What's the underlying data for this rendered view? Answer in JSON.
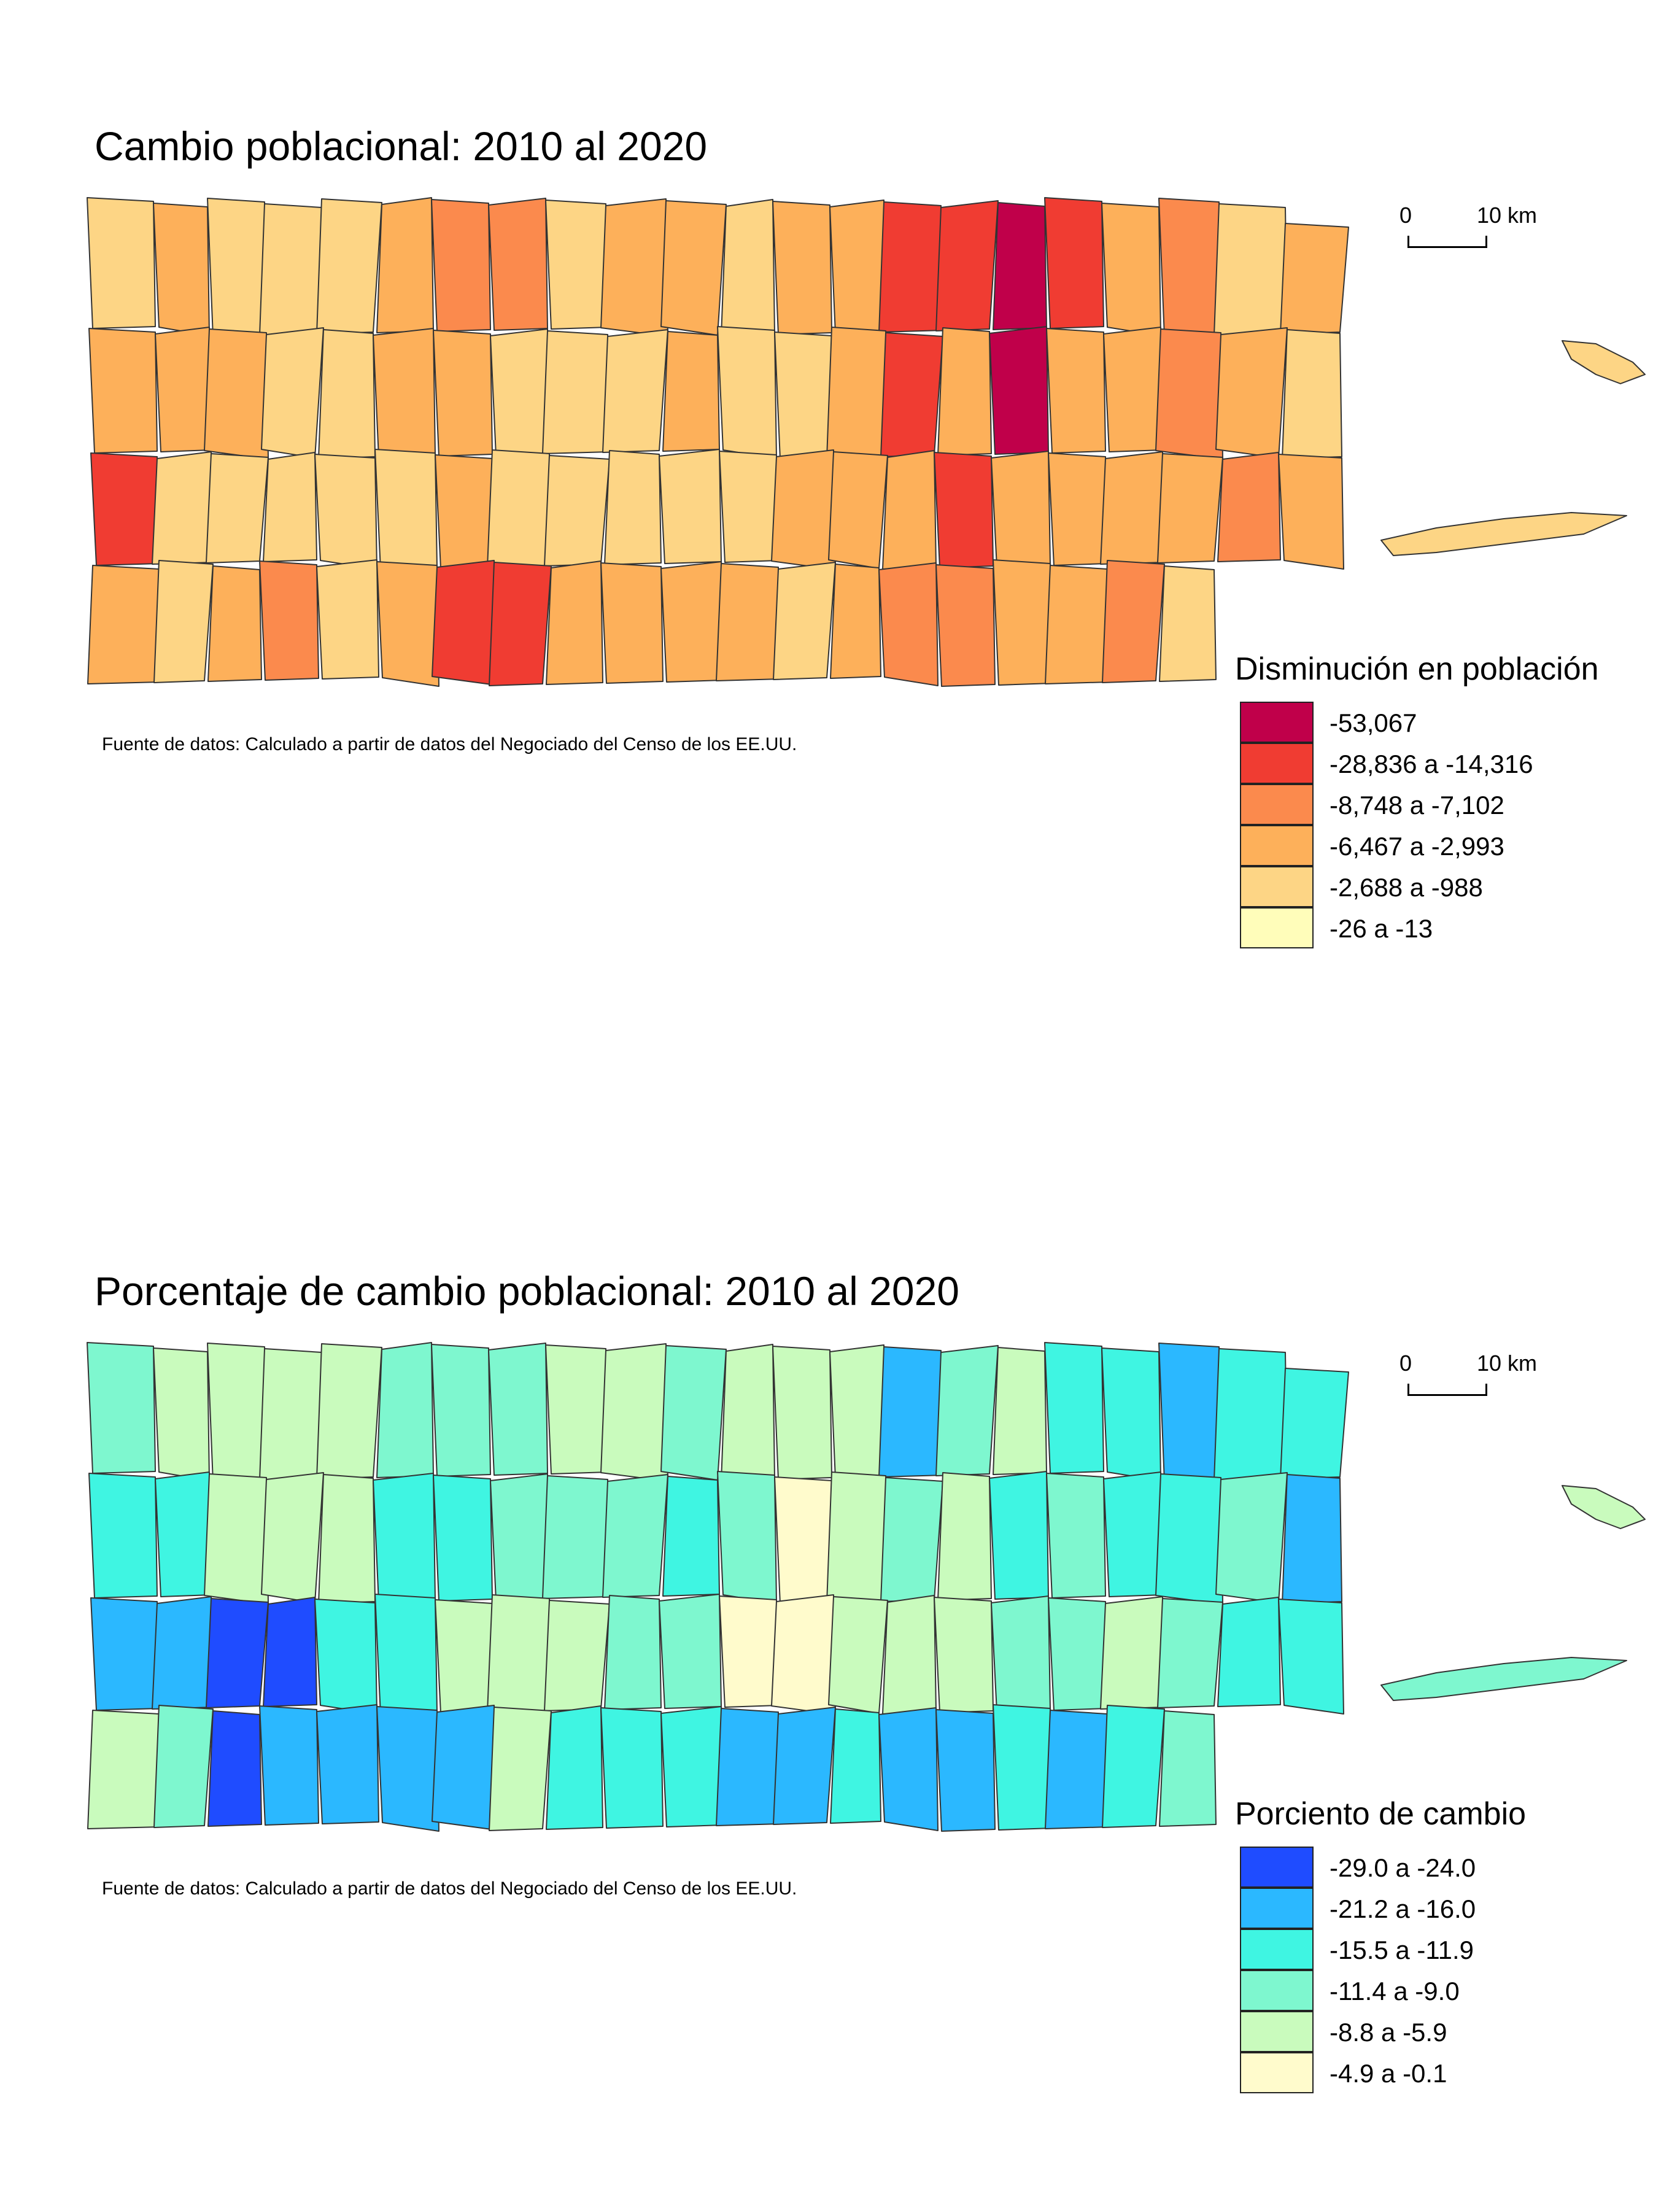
{
  "maps": [
    {
      "title": "Cambio poblacional: 2010 al 2020",
      "scale": {
        "zero": "0",
        "ten": "10 km"
      },
      "source": "Fuente de datos: Calculado a partir de datos del Negociado del Censo de los EE.UU.",
      "legend": {
        "title": "Disminución en población",
        "items": [
          {
            "label": "-53,067",
            "color": "#c0004a"
          },
          {
            "label": "-28,836 a -14,316",
            "color": "#f03c32"
          },
          {
            "label": "-8,748 a -7,102",
            "color": "#fb8a4d"
          },
          {
            "label": "-6,467 a -2,993",
            "color": "#fdb05a"
          },
          {
            "label": "-2,688 a -988",
            "color": "#fdd585"
          },
          {
            "label": "-26 a -13",
            "color": "#fffdba"
          }
        ]
      }
    },
    {
      "title": "Porcentaje de cambio poblacional: 2010 al 2020",
      "scale": {
        "zero": "0",
        "ten": "10 km"
      },
      "source": "Fuente de datos: Calculado a partir de datos del Negociado del Censo de los EE.UU.",
      "legend": {
        "title": "Porciento de cambio",
        "items": [
          {
            "label": "-29.0 a -24.0",
            "color": "#1f4cff"
          },
          {
            "label": "-21.2 a -16.0",
            "color": "#2bb8ff"
          },
          {
            "label": "-15.5 a -11.9",
            "color": "#3ff5e2"
          },
          {
            "label": "-11.4 a -9.0",
            "color": "#7ef7cf"
          },
          {
            "label": "-8.8 a -5.9",
            "color": "#c9fbbd"
          },
          {
            "label": "-4.9 a -0.1",
            "color": "#fffbcc"
          }
        ]
      }
    }
  ]
}
